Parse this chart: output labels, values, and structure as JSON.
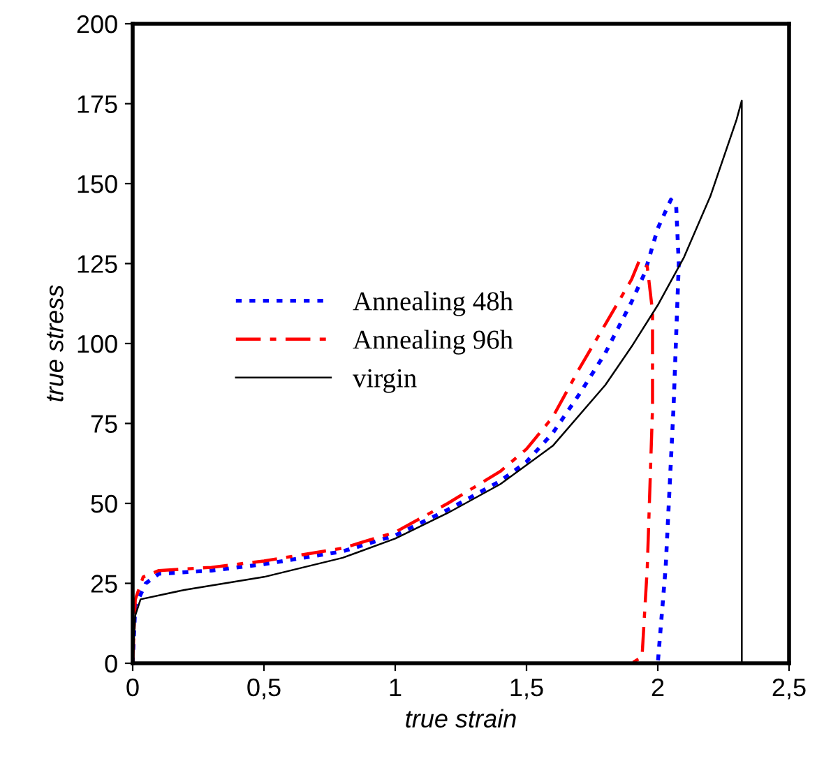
{
  "chart_data": {
    "type": "line",
    "xlabel": "true strain",
    "ylabel": "true stress",
    "xlim": [
      0,
      2.5
    ],
    "ylim": [
      0,
      200
    ],
    "xticks": [
      0,
      {
        "value": 0.5,
        "label": "0,5"
      },
      1,
      {
        "value": 1.5,
        "label": "1,5"
      },
      2,
      {
        "value": 2.5,
        "label": "2,5"
      }
    ],
    "yticks": [
      0,
      25,
      50,
      75,
      100,
      125,
      150,
      175,
      200
    ],
    "grid": false,
    "legend": "top left",
    "marker": "none",
    "series": [
      {
        "name": "Annealing 48h",
        "color": "#0000ff",
        "line_style": "dotted",
        "x": [
          0,
          0.01,
          0.05,
          0.1,
          0.3,
          0.5,
          0.8,
          1,
          1.2,
          1.4,
          1.5,
          1.6,
          1.7,
          1.8,
          1.9,
          1.95,
          2.0,
          2.05,
          2.07,
          2.08,
          2.06,
          2.03,
          2.0
        ],
        "values": [
          0,
          18,
          25,
          28,
          29,
          31,
          35,
          40,
          48,
          57,
          63,
          72,
          84,
          97,
          113,
          122,
          136,
          145,
          143,
          125,
          80,
          30,
          0
        ]
      },
      {
        "name": "Annealing 96h",
        "color": "#ff0000",
        "line_style": "dashed",
        "x": [
          0,
          0.01,
          0.04,
          0.1,
          0.3,
          0.5,
          0.8,
          1,
          1.2,
          1.4,
          1.5,
          1.6,
          1.7,
          1.8,
          1.9,
          1.93,
          1.96,
          1.98,
          1.98,
          1.96,
          1.94,
          1.9
        ],
        "values": [
          0,
          20,
          27,
          29,
          30,
          32,
          36,
          41,
          50,
          60,
          67,
          77,
          92,
          106,
          120,
          126,
          124,
          110,
          80,
          30,
          2,
          0
        ]
      },
      {
        "name": "virgin",
        "color": "#000000",
        "line_style": "solid",
        "x": [
          0,
          0.01,
          0.03,
          0.2,
          0.5,
          0.8,
          1,
          1.2,
          1.4,
          1.6,
          1.8,
          1.9,
          2.0,
          2.1,
          2.2,
          2.3,
          2.32,
          2.32
        ],
        "values": [
          0,
          15,
          20,
          23,
          27,
          33,
          39,
          47,
          56,
          68,
          87,
          99,
          112,
          127,
          146,
          170,
          176,
          0
        ]
      }
    ]
  }
}
